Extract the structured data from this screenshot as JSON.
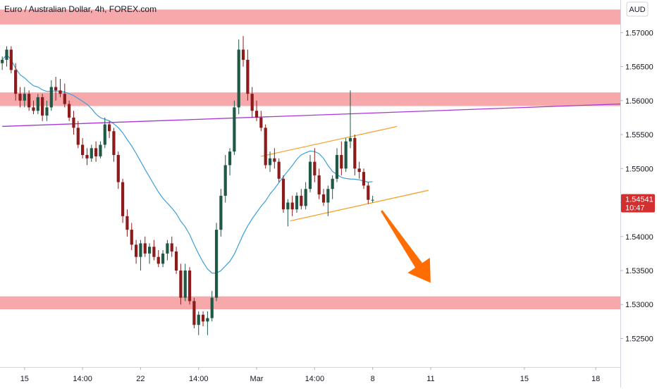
{
  "chart_data": {
    "type": "candlestick",
    "title": "Euro / Australian Dollar, 4h, FOREX.com",
    "currency": "AUD",
    "ylim": [
      1.5208,
      1.5748
    ],
    "y_ticks": [
      "1.57000",
      "1.56500",
      "1.56000",
      "1.55500",
      "1.55000",
      "1.54500",
      "1.54000",
      "1.53500",
      "1.53000",
      "1.52500"
    ],
    "y_tick_values": [
      1.57,
      1.565,
      1.56,
      1.555,
      1.55,
      1.545,
      1.54,
      1.535,
      1.53,
      1.525
    ],
    "x_ticks": [
      "15",
      "14:00",
      "22",
      "14:00",
      "Mar",
      "14:00",
      "8",
      "11",
      "15",
      "18"
    ],
    "x_tick_bars": [
      5,
      18,
      31,
      44,
      57,
      70,
      83,
      96,
      117,
      133
    ],
    "bars_visible": 84,
    "last_price": "1.54541",
    "last_price_value": 1.54541,
    "countdown": "10:47",
    "colors": {
      "up": "#1e5945",
      "down": "#8c1b1b",
      "zone": "#f7a8aa",
      "trendline": "#a737d6",
      "ma": "#3ba1d9",
      "channel": "#f59d1b",
      "arrow": "#ff6d00",
      "price_badge": "#d32f2f"
    },
    "zones": [
      {
        "low": 1.5712,
        "high": 1.5734
      },
      {
        "low": 1.5592,
        "high": 1.5612
      },
      {
        "low": 1.5293,
        "high": 1.5312
      }
    ],
    "trendline": {
      "x1": 0,
      "y1": 1.5562,
      "x2": 145,
      "y2": 1.5595
    },
    "channel": [
      {
        "x1": 58,
        "y1": 1.5518,
        "x2": 88.5,
        "y2": 1.5562
      },
      {
        "x1": 64.5,
        "y1": 1.5423,
        "x2": 95.5,
        "y2": 1.5468
      }
    ],
    "arrow": {
      "x1": 85,
      "y1": 1.5438,
      "x2": 96,
      "y2": 1.5332
    },
    "ohlc": [
      [
        1.5655,
        1.5665,
        1.5645,
        1.566
      ],
      [
        1.566,
        1.568,
        1.565,
        1.5675
      ],
      [
        1.5675,
        1.568,
        1.564,
        1.5645
      ],
      [
        1.5645,
        1.5655,
        1.56,
        1.561
      ],
      [
        1.561,
        1.562,
        1.559,
        1.56
      ],
      [
        1.56,
        1.562,
        1.559,
        1.561
      ],
      [
        1.561,
        1.5615,
        1.5585,
        1.559
      ],
      [
        1.559,
        1.56,
        1.558,
        1.5585
      ],
      [
        1.5585,
        1.561,
        1.558,
        1.5605
      ],
      [
        1.5605,
        1.561,
        1.557,
        1.5578
      ],
      [
        1.5578,
        1.56,
        1.557,
        1.559
      ],
      [
        1.559,
        1.563,
        1.5585,
        1.562
      ],
      [
        1.562,
        1.5635,
        1.56,
        1.5615
      ],
      [
        1.5615,
        1.5632,
        1.5605,
        1.561
      ],
      [
        1.561,
        1.5625,
        1.559,
        1.5595
      ],
      [
        1.5595,
        1.56,
        1.557,
        1.5575
      ],
      [
        1.5575,
        1.5585,
        1.555,
        1.556
      ],
      [
        1.556,
        1.557,
        1.553,
        1.5535
      ],
      [
        1.5535,
        1.5545,
        1.5515,
        1.552
      ],
      [
        1.552,
        1.553,
        1.5505,
        1.5515
      ],
      [
        1.5515,
        1.5535,
        1.551,
        1.553
      ],
      [
        1.553,
        1.554,
        1.551,
        1.5518
      ],
      [
        1.5518,
        1.554,
        1.5515,
        1.5535
      ],
      [
        1.5535,
        1.5575,
        1.553,
        1.5565
      ],
      [
        1.5565,
        1.557,
        1.5545,
        1.5555
      ],
      [
        1.5555,
        1.556,
        1.551,
        1.552
      ],
      [
        1.552,
        1.5525,
        1.547,
        1.548
      ],
      [
        1.548,
        1.5485,
        1.542,
        1.543
      ],
      [
        1.543,
        1.544,
        1.54,
        1.541
      ],
      [
        1.541,
        1.542,
        1.538,
        1.5388
      ],
      [
        1.5388,
        1.5395,
        1.536,
        1.537
      ],
      [
        1.537,
        1.5395,
        1.535,
        1.539
      ],
      [
        1.539,
        1.54,
        1.537,
        1.5375
      ],
      [
        1.5375,
        1.539,
        1.536,
        1.5385
      ],
      [
        1.5385,
        1.5395,
        1.5365,
        1.537
      ],
      [
        1.537,
        1.538,
        1.5355,
        1.536
      ],
      [
        1.536,
        1.538,
        1.5355,
        1.5375
      ],
      [
        1.5375,
        1.5395,
        1.5365,
        1.539
      ],
      [
        1.539,
        1.54,
        1.537,
        1.5378
      ],
      [
        1.5378,
        1.5385,
        1.5345,
        1.535
      ],
      [
        1.535,
        1.536,
        1.53,
        1.531
      ],
      [
        1.531,
        1.536,
        1.5305,
        1.535
      ],
      [
        1.535,
        1.5355,
        1.53,
        1.5305
      ],
      [
        1.5305,
        1.531,
        1.5265,
        1.527
      ],
      [
        1.527,
        1.529,
        1.5255,
        1.5285
      ],
      [
        1.5285,
        1.529,
        1.5268,
        1.5275
      ],
      [
        1.5275,
        1.529,
        1.5255,
        1.528
      ],
      [
        1.528,
        1.532,
        1.5275,
        1.531
      ],
      [
        1.531,
        1.542,
        1.5305,
        1.541
      ],
      [
        1.541,
        1.547,
        1.54,
        1.546
      ],
      [
        1.546,
        1.552,
        1.545,
        1.5505
      ],
      [
        1.5505,
        1.553,
        1.549,
        1.5525
      ],
      [
        1.5525,
        1.56,
        1.552,
        1.559
      ],
      [
        1.559,
        1.569,
        1.558,
        1.5675
      ],
      [
        1.5675,
        1.5695,
        1.565,
        1.566
      ],
      [
        1.566,
        1.5675,
        1.56,
        1.561
      ],
      [
        1.561,
        1.562,
        1.5575,
        1.5585
      ],
      [
        1.5585,
        1.56,
        1.557,
        1.5575
      ],
      [
        1.5575,
        1.5585,
        1.5555,
        1.556
      ],
      [
        1.556,
        1.5565,
        1.55,
        1.5505
      ],
      [
        1.5505,
        1.5525,
        1.5495,
        1.5515
      ],
      [
        1.5515,
        1.553,
        1.55,
        1.551
      ],
      [
        1.551,
        1.5515,
        1.548,
        1.5485
      ],
      [
        1.5485,
        1.549,
        1.5435,
        1.544
      ],
      [
        1.544,
        1.5455,
        1.5415,
        1.545
      ],
      [
        1.545,
        1.546,
        1.543,
        1.544
      ],
      [
        1.544,
        1.5465,
        1.5435,
        1.546
      ],
      [
        1.546,
        1.547,
        1.544,
        1.5445
      ],
      [
        1.5445,
        1.548,
        1.544,
        1.547
      ],
      [
        1.547,
        1.552,
        1.5465,
        1.551
      ],
      [
        1.551,
        1.553,
        1.548,
        1.549
      ],
      [
        1.549,
        1.55,
        1.5455,
        1.5462
      ],
      [
        1.5462,
        1.547,
        1.5445,
        1.545
      ],
      [
        1.545,
        1.5475,
        1.543,
        1.547
      ],
      [
        1.547,
        1.549,
        1.5455,
        1.5485
      ],
      [
        1.5485,
        1.553,
        1.548,
        1.552
      ],
      [
        1.552,
        1.554,
        1.549,
        1.55
      ],
      [
        1.55,
        1.5545,
        1.5495,
        1.554
      ],
      [
        1.554,
        1.5615,
        1.553,
        1.5545
      ],
      [
        1.5545,
        1.555,
        1.549,
        1.55
      ],
      [
        1.55,
        1.551,
        1.5485,
        1.5495
      ],
      [
        1.5495,
        1.55,
        1.547,
        1.5475
      ],
      [
        1.5475,
        1.548,
        1.5448,
        1.5454
      ],
      [
        1.5454,
        1.546,
        1.545,
        1.5454
      ]
    ]
  }
}
